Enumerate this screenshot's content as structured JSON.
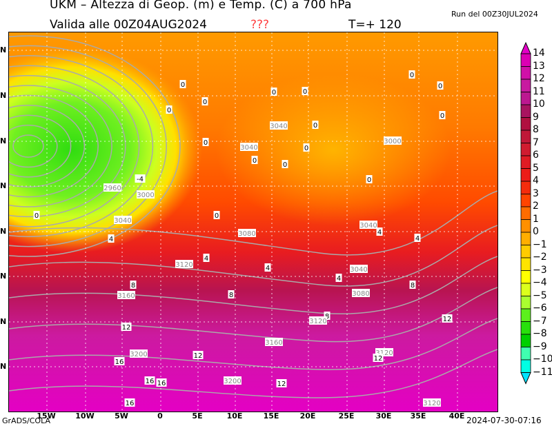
{
  "header": {
    "title": "UKM – Altezza di Geop. (m) e Temp. (C) a 700 hPa",
    "valid": "Valida alle 00Z04AUG2024",
    "flag": "???",
    "timestep": "T=+ 120",
    "run": "Run del 00Z30JUL2024"
  },
  "footer": {
    "credit": "GrADS/COLA",
    "timestamp": "2024-07-30-07:16"
  },
  "axes": {
    "lon_labels": [
      "15W",
      "10W",
      "5W",
      "0",
      "5E",
      "10E",
      "15E",
      "20E",
      "25E",
      "30E",
      "35E",
      "40E"
    ],
    "lat_labels": [
      "N",
      "N",
      "N",
      "N",
      "N",
      "N",
      "N",
      "N"
    ]
  },
  "colorbar": {
    "labels": [
      "14",
      "13",
      "12",
      "11",
      "10",
      "9",
      "8",
      "7",
      "6",
      "5",
      "4",
      "3",
      "2",
      "1",
      "0",
      "−1",
      "−2",
      "−3",
      "−4",
      "−5",
      "−6",
      "−7",
      "−8",
      "−9",
      "−10",
      "−11"
    ],
    "colors": [
      "#e400c8",
      "#dc00b4",
      "#d010a8",
      "#c81aa0",
      "#bc1890",
      "#a81460",
      "#b01040",
      "#c01838",
      "#d01c30",
      "#e01c24",
      "#ec1c18",
      "#f42c0c",
      "#ff4400",
      "#ff6c00",
      "#ff9000",
      "#ffae00",
      "#ffcc00",
      "#ffe400",
      "#ffff00",
      "#dcff1c",
      "#aaff30",
      "#5cf01c",
      "#28e00c",
      "#00d000",
      "#40ffb0",
      "#00ffe4",
      "#00e4ff"
    ]
  },
  "contour_labels": [
    "0",
    "0",
    "0",
    "0",
    "0",
    "0",
    "0",
    "0",
    "3040",
    "0",
    "3040",
    "0",
    "0",
    "0",
    "0",
    "3000",
    "0",
    "-4",
    "2960",
    "3000",
    "0",
    "3040",
    "0",
    "3040",
    "4",
    "3080",
    "4",
    "4",
    "4",
    "3120",
    "4",
    "3040",
    "4",
    "8",
    "8",
    "3160",
    "8",
    "3080",
    "8",
    "3120",
    "12",
    "12",
    "3160",
    "3200",
    "12",
    "3120",
    "12",
    "16",
    "16",
    "16",
    "3200",
    "12",
    "16",
    "3120"
  ]
}
